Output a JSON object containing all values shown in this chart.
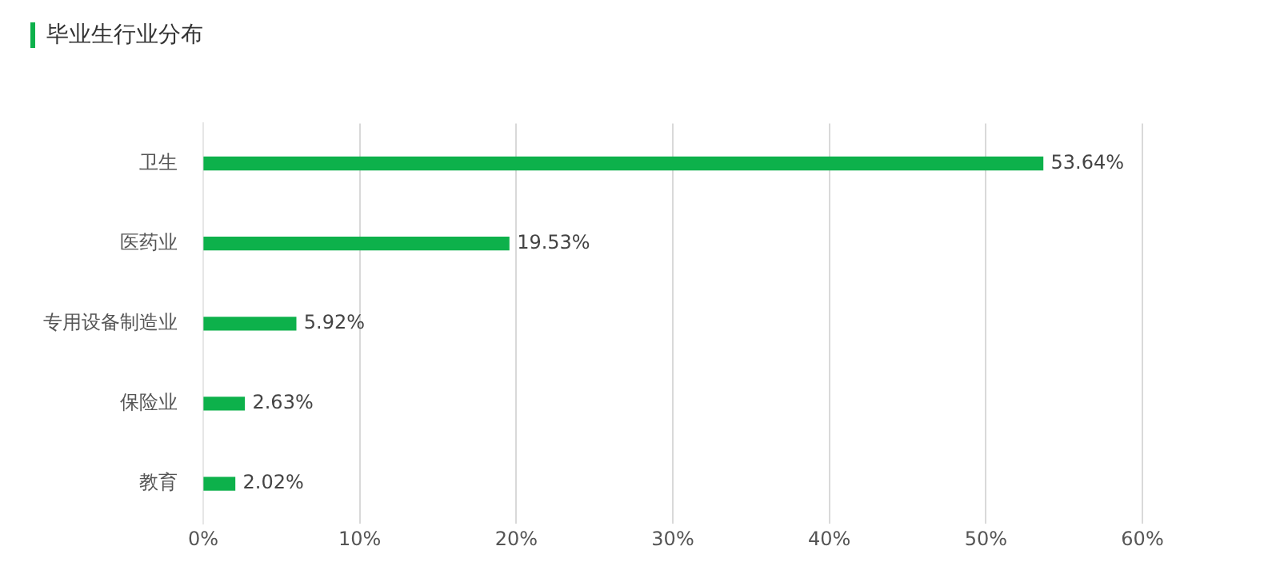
{
  "chart_data": {
    "type": "bar",
    "title": "毕业生行业分布",
    "orientation": "horizontal",
    "categories": [
      "卫生",
      "医药业",
      "专用设备制造业",
      "保险业",
      "教育"
    ],
    "values": [
      53.64,
      19.53,
      5.92,
      2.63,
      2.02
    ],
    "value_labels": [
      "53.64%",
      "19.53%",
      "5.92%",
      "2.63%",
      "2.02%"
    ],
    "color": "#0db14b",
    "xlim": [
      0,
      60
    ],
    "xticks": [
      {
        "value": 0,
        "label": "0%"
      },
      {
        "value": 10,
        "label": "10%"
      },
      {
        "value": 20,
        "label": "20%"
      },
      {
        "value": 30,
        "label": "30%"
      },
      {
        "value": 40,
        "label": "40%"
      },
      {
        "value": 50,
        "label": "50%"
      },
      {
        "value": 60,
        "label": "60%"
      }
    ],
    "grid": "x",
    "legend": false
  }
}
